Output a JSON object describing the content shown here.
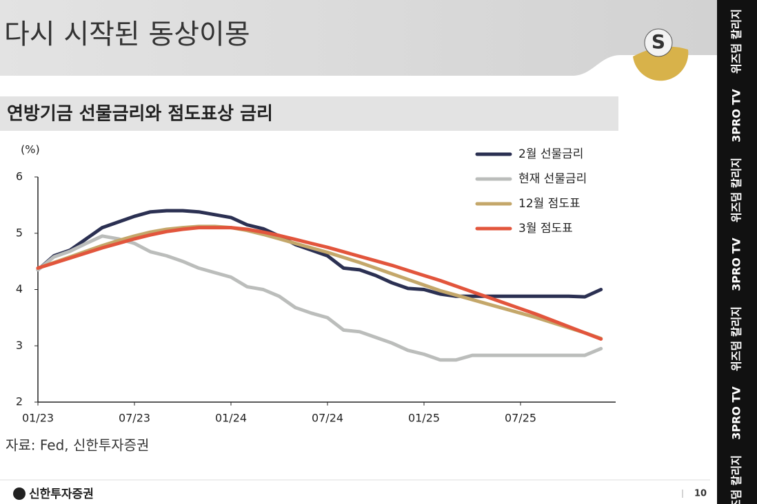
{
  "header": {
    "title": "다시 시작된 동상이몽"
  },
  "chart_data": {
    "type": "line",
    "title": "연방기금 선물금리와 점도표상 금리",
    "y_label": "(%)",
    "categories": [
      "01/23",
      null,
      null,
      null,
      null,
      null,
      "07/23",
      null,
      null,
      null,
      null,
      null,
      "01/24",
      null,
      null,
      null,
      null,
      null,
      "07/24",
      null,
      null,
      null,
      null,
      null,
      "01/25",
      null,
      null,
      null,
      null,
      null,
      "07/25",
      null,
      null,
      null,
      null,
      null
    ],
    "ylim": [
      2,
      6
    ],
    "yticks": [
      2,
      3,
      4,
      5,
      6
    ],
    "grid": false,
    "legend": "upper right",
    "series": [
      {
        "name": "2월 선물금리",
        "color": "#2b3052",
        "values": [
          4.35,
          4.6,
          4.7,
          4.9,
          5.1,
          5.2,
          5.3,
          5.38,
          5.4,
          5.4,
          5.38,
          5.33,
          5.28,
          5.15,
          5.08,
          4.95,
          4.8,
          4.7,
          4.6,
          4.38,
          4.35,
          4.25,
          4.12,
          4.02,
          4.0,
          3.92,
          3.88,
          3.88,
          3.88,
          3.88,
          3.88,
          3.88,
          3.88,
          3.88,
          3.87,
          4.0
        ]
      },
      {
        "name": "현재 선물금리",
        "color": "#bbbdbb",
        "values": [
          4.35,
          4.58,
          4.68,
          4.82,
          4.95,
          4.9,
          4.82,
          4.67,
          4.6,
          4.5,
          4.38,
          4.3,
          4.22,
          4.05,
          4.0,
          3.88,
          3.68,
          3.58,
          3.5,
          3.28,
          3.25,
          3.15,
          3.05,
          2.92,
          2.85,
          2.75,
          2.75,
          2.83,
          2.83,
          2.83,
          2.83,
          2.83,
          2.83,
          2.83,
          2.83,
          2.95
        ]
      },
      {
        "name": "12월 점도표",
        "color": "#c4a76a",
        "values": [
          4.38,
          4.48,
          4.58,
          4.68,
          4.78,
          4.87,
          4.95,
          5.02,
          5.07,
          5.1,
          5.12,
          5.12,
          5.1,
          5.05,
          4.98,
          4.9,
          4.82,
          4.74,
          4.66,
          4.57,
          4.48,
          4.38,
          4.28,
          4.18,
          4.08,
          3.98,
          3.9,
          3.82,
          3.74,
          3.66,
          3.58,
          3.5,
          3.41,
          3.32,
          3.23,
          3.13
        ]
      },
      {
        "name": "3월 점도표",
        "color": "#e2553c",
        "values": [
          4.38,
          4.47,
          4.56,
          4.65,
          4.74,
          4.82,
          4.9,
          4.97,
          5.03,
          5.07,
          5.1,
          5.1,
          5.1,
          5.07,
          5.02,
          4.96,
          4.89,
          4.82,
          4.75,
          4.67,
          4.59,
          4.51,
          4.43,
          4.34,
          4.25,
          4.16,
          4.06,
          3.96,
          3.86,
          3.76,
          3.66,
          3.56,
          3.45,
          3.34,
          3.23,
          3.12
        ]
      }
    ]
  },
  "source": "자료: Fed, 신한투자증권",
  "footer": {
    "logo": "신한투자증권",
    "page": "10"
  },
  "sidebar": [
    "위즈덤 칼리지",
    "3PRO TV",
    "위즈덤 칼리지",
    "3PRO TV",
    "위즈덤 칼리지",
    "3PRO TV",
    "위즈덤 칼리지"
  ]
}
